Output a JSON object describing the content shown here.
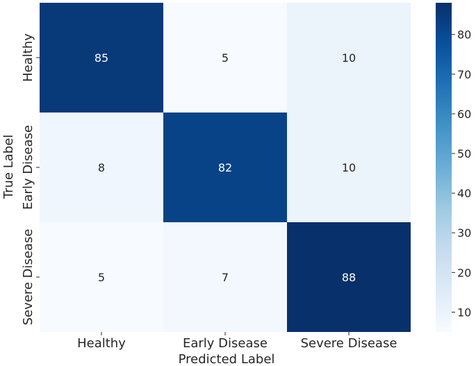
{
  "chart_data": {
    "type": "heatmap",
    "title": "",
    "xlabel": "Predicted Label",
    "ylabel": "True Label",
    "x_categories": [
      "Healthy",
      "Early Disease",
      "Severe Disease"
    ],
    "y_categories": [
      "Healthy",
      "Early Disease",
      "Severe Disease"
    ],
    "values": [
      [
        85,
        5,
        10
      ],
      [
        8,
        82,
        10
      ],
      [
        5,
        7,
        88
      ]
    ],
    "colormap": "Blues",
    "colorbar": {
      "ticks": [
        10,
        20,
        30,
        40,
        50,
        60,
        70,
        80
      ],
      "range": [
        5,
        88
      ]
    },
    "annotation_colors": {
      "light": "#ffffff",
      "dark": "#262626"
    }
  }
}
